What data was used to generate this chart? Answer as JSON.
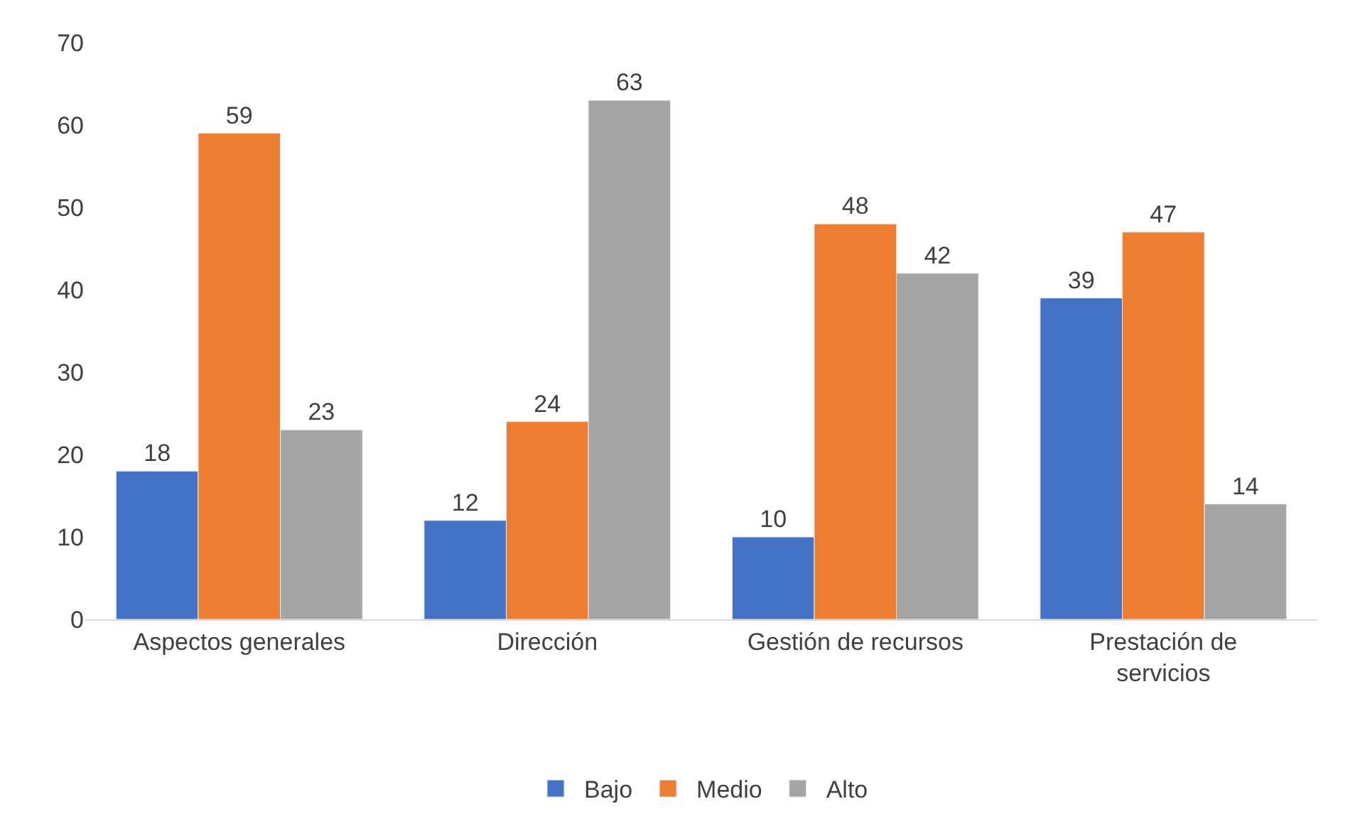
{
  "chart_data": {
    "type": "bar",
    "categories": [
      "Aspectos generales",
      "Dirección",
      "Gestión de recursos",
      "Prestación de servicios"
    ],
    "series": [
      {
        "name": "Bajo",
        "color": "#4472c4",
        "values": [
          18,
          12,
          10,
          39
        ]
      },
      {
        "name": "Medio",
        "color": "#ed7d31",
        "values": [
          59,
          24,
          48,
          47
        ]
      },
      {
        "name": "Alto",
        "color": "#a5a5a5",
        "values": [
          23,
          63,
          42,
          14
        ]
      }
    ],
    "ylim": [
      0,
      70
    ],
    "yticks": [
      0,
      10,
      20,
      30,
      40,
      50,
      60,
      70
    ],
    "data_labels": true,
    "grid": false,
    "legend": "bottom"
  }
}
